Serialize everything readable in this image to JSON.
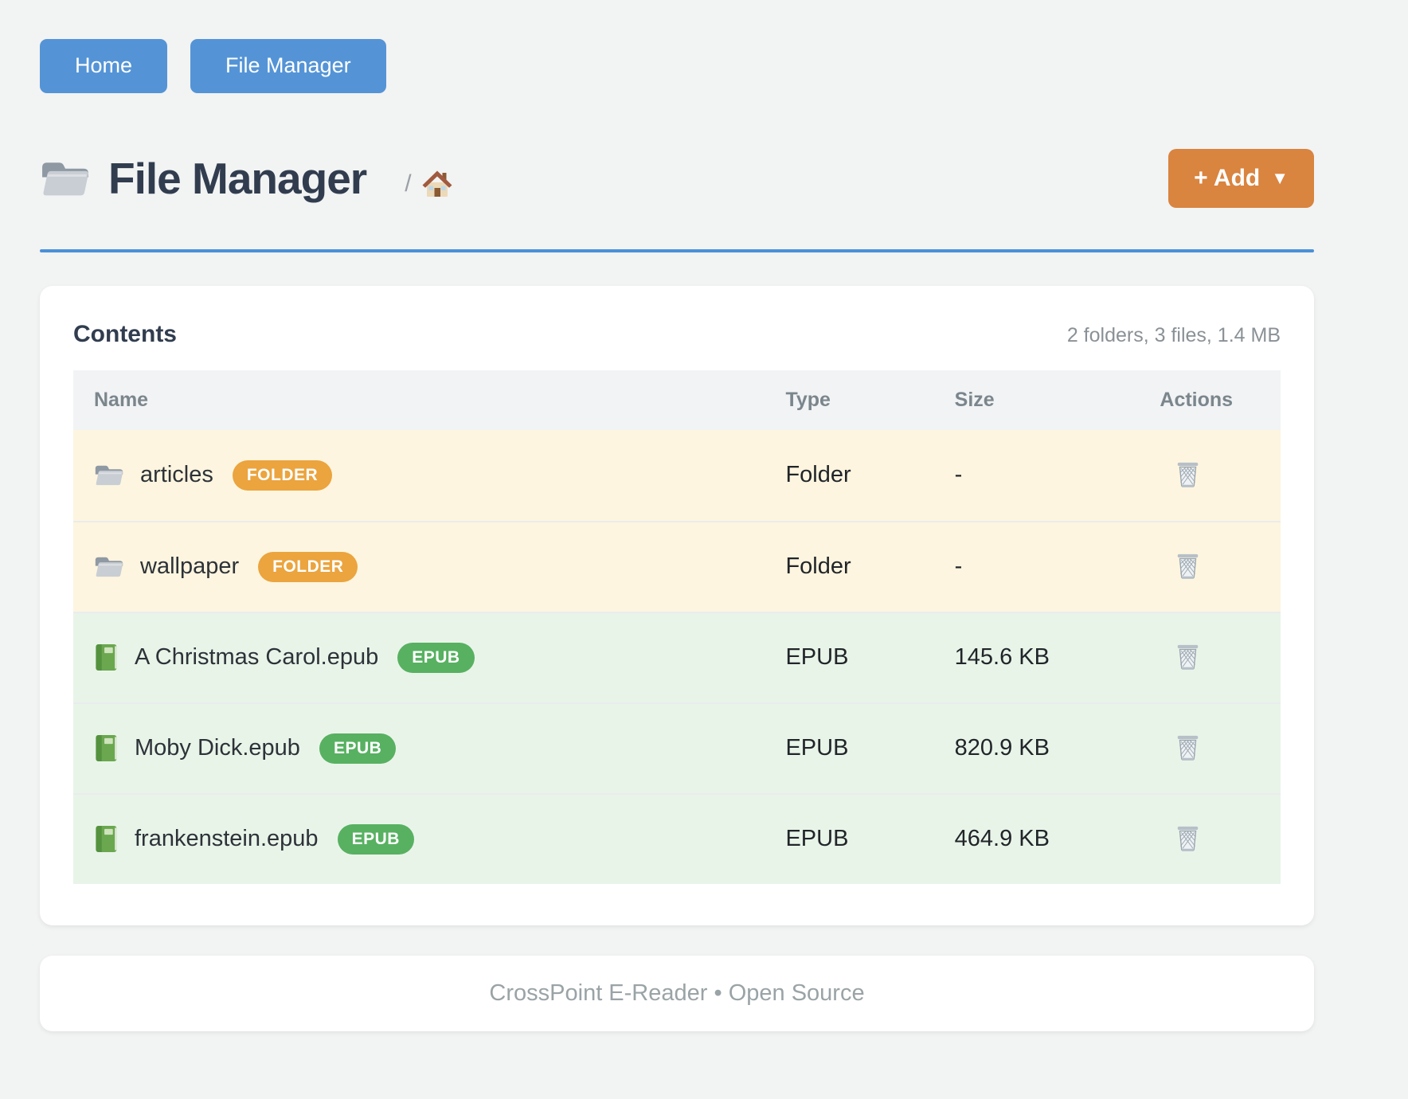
{
  "nav": {
    "buttons": [
      {
        "label": "Home"
      },
      {
        "label": "File Manager"
      }
    ]
  },
  "header": {
    "title": "File Manager",
    "title_icon": "folder-icon",
    "breadcrumb": {
      "separator": "/",
      "home_icon": "home-icon"
    },
    "add_button": {
      "label": "+ Add",
      "caret": "▼"
    }
  },
  "contents": {
    "heading": "Contents",
    "summary": "2 folders, 3 files, 1.4 MB"
  },
  "table": {
    "columns": [
      "Name",
      "Type",
      "Size",
      "Actions"
    ],
    "rows": [
      {
        "name": "articles",
        "badge": "FOLDER",
        "type": "Folder",
        "size": "-",
        "kind": "folder",
        "icon": "folder-icon",
        "action_icon": "trash-icon"
      },
      {
        "name": "wallpaper",
        "badge": "FOLDER",
        "type": "Folder",
        "size": "-",
        "kind": "folder",
        "icon": "folder-icon",
        "action_icon": "trash-icon"
      },
      {
        "name": "A Christmas Carol.epub",
        "badge": "EPUB",
        "type": "EPUB",
        "size": "145.6 KB",
        "kind": "epub",
        "icon": "book-icon",
        "action_icon": "trash-icon"
      },
      {
        "name": "Moby Dick.epub",
        "badge": "EPUB",
        "type": "EPUB",
        "size": "820.9 KB",
        "kind": "epub",
        "icon": "book-icon",
        "action_icon": "trash-icon"
      },
      {
        "name": "frankenstein.epub",
        "badge": "EPUB",
        "type": "EPUB",
        "size": "464.9 KB",
        "kind": "epub",
        "icon": "book-icon",
        "action_icon": "trash-icon"
      }
    ]
  },
  "footer": {
    "text": "CrossPoint E-Reader • Open Source"
  },
  "colors": {
    "nav-blue": "#5494d6",
    "accent-blue": "#4a90d9",
    "add-orange": "#d9843f",
    "badge-orange": "#eba43e",
    "badge-green": "#57b161",
    "row-folder-bg": "#fdf5df",
    "row-epub-bg": "#e9f4e9",
    "header-bg": "#f1f3f5"
  }
}
